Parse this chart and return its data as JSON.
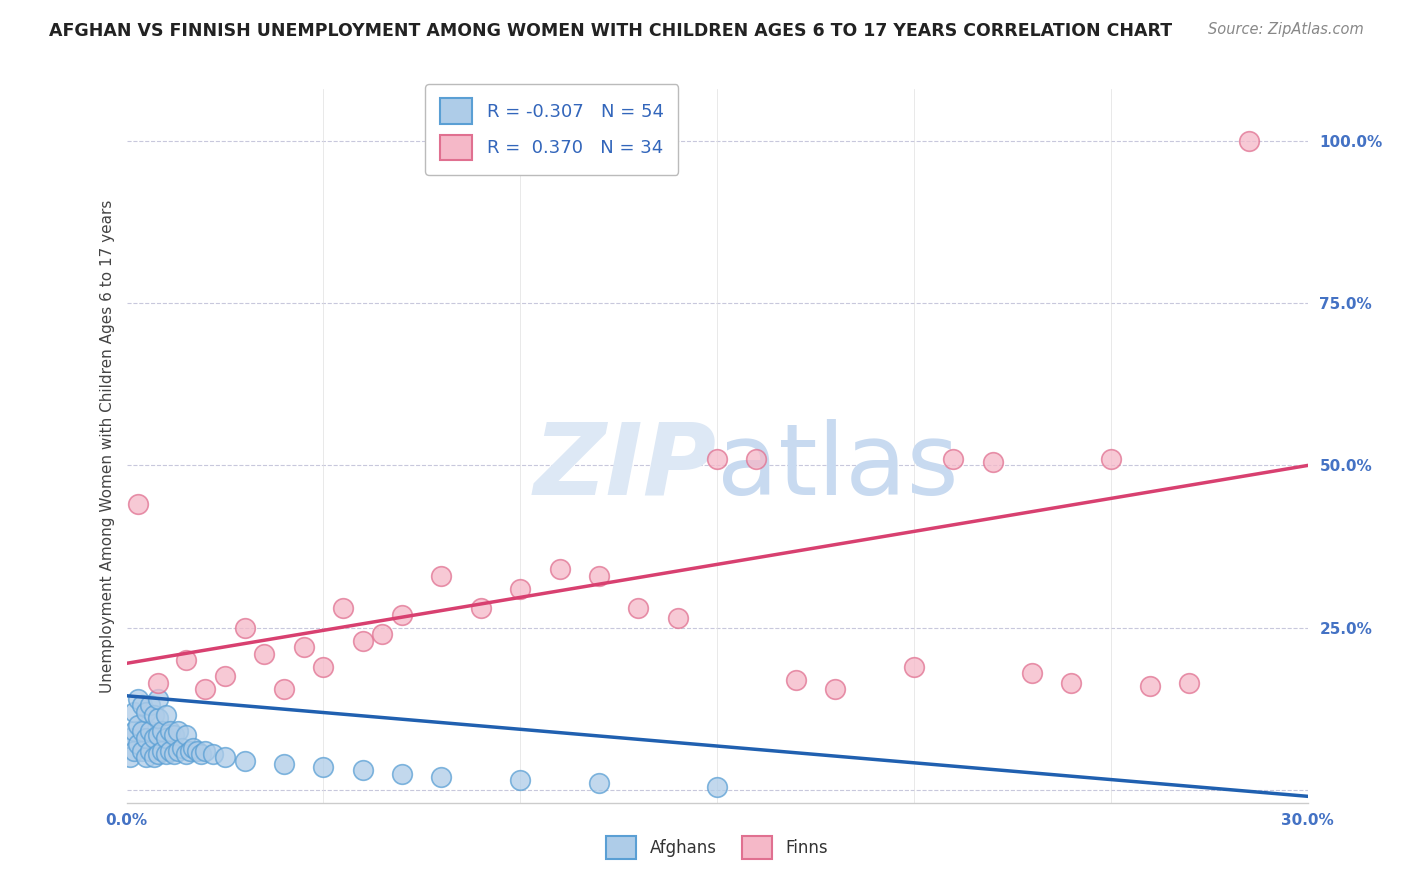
{
  "title": "AFGHAN VS FINNISH UNEMPLOYMENT AMONG WOMEN WITH CHILDREN AGES 6 TO 17 YEARS CORRELATION CHART",
  "source": "Source: ZipAtlas.com",
  "ylabel": "Unemployment Among Women with Children Ages 6 to 17 years",
  "xlim": [
    0.0,
    0.3
  ],
  "ylim": [
    -0.02,
    1.08
  ],
  "x_ticks": [
    0.0,
    0.3
  ],
  "x_tick_labels": [
    "0.0%",
    "30.0%"
  ],
  "y_ticks": [
    0.0,
    0.25,
    0.5,
    0.75,
    1.0
  ],
  "y_tick_labels": [
    "",
    "25.0%",
    "50.0%",
    "75.0%",
    "100.0%"
  ],
  "afghan_color": "#aecce8",
  "finn_color": "#f5b8c8",
  "afghan_edge": "#5a9fd4",
  "finn_edge": "#e07090",
  "trend_blue": "#2060b0",
  "trend_pink": "#d84070",
  "r_afghan": -0.307,
  "n_afghan": 54,
  "r_finn": 0.37,
  "n_finn": 34,
  "background_color": "#ffffff",
  "grid_color": "#c8c8dc",
  "finn_trend_x0": 0.0,
  "finn_trend_y0": 0.195,
  "finn_trend_x1": 0.3,
  "finn_trend_y1": 0.5,
  "afghan_trend_x0": 0.0,
  "afghan_trend_y0": 0.145,
  "afghan_trend_x1": 0.3,
  "afghan_trend_y1": -0.01,
  "afghan_scatter_x": [
    0.001,
    0.001,
    0.002,
    0.002,
    0.002,
    0.003,
    0.003,
    0.003,
    0.004,
    0.004,
    0.004,
    0.005,
    0.005,
    0.005,
    0.006,
    0.006,
    0.006,
    0.007,
    0.007,
    0.007,
    0.008,
    0.008,
    0.008,
    0.008,
    0.009,
    0.009,
    0.01,
    0.01,
    0.01,
    0.011,
    0.011,
    0.012,
    0.012,
    0.013,
    0.013,
    0.014,
    0.015,
    0.015,
    0.016,
    0.017,
    0.018,
    0.019,
    0.02,
    0.022,
    0.025,
    0.03,
    0.04,
    0.05,
    0.06,
    0.07,
    0.08,
    0.1,
    0.12,
    0.15
  ],
  "afghan_scatter_y": [
    0.05,
    0.08,
    0.06,
    0.09,
    0.12,
    0.07,
    0.1,
    0.14,
    0.06,
    0.09,
    0.13,
    0.05,
    0.08,
    0.12,
    0.06,
    0.09,
    0.13,
    0.05,
    0.08,
    0.115,
    0.055,
    0.085,
    0.11,
    0.14,
    0.06,
    0.09,
    0.055,
    0.08,
    0.115,
    0.06,
    0.09,
    0.055,
    0.085,
    0.06,
    0.09,
    0.065,
    0.055,
    0.085,
    0.06,
    0.065,
    0.06,
    0.055,
    0.06,
    0.055,
    0.05,
    0.045,
    0.04,
    0.035,
    0.03,
    0.025,
    0.02,
    0.015,
    0.01,
    0.005
  ],
  "finn_scatter_x": [
    0.003,
    0.008,
    0.015,
    0.02,
    0.025,
    0.03,
    0.035,
    0.04,
    0.045,
    0.05,
    0.055,
    0.06,
    0.065,
    0.07,
    0.08,
    0.09,
    0.1,
    0.11,
    0.12,
    0.13,
    0.14,
    0.15,
    0.16,
    0.17,
    0.18,
    0.2,
    0.21,
    0.22,
    0.23,
    0.24,
    0.25,
    0.26,
    0.27,
    0.285
  ],
  "finn_scatter_y": [
    0.44,
    0.165,
    0.2,
    0.155,
    0.175,
    0.25,
    0.21,
    0.155,
    0.22,
    0.19,
    0.28,
    0.23,
    0.24,
    0.27,
    0.33,
    0.28,
    0.31,
    0.34,
    0.33,
    0.28,
    0.265,
    0.51,
    0.51,
    0.17,
    0.155,
    0.19,
    0.51,
    0.505,
    0.18,
    0.165,
    0.51,
    0.16,
    0.165,
    1.0
  ]
}
